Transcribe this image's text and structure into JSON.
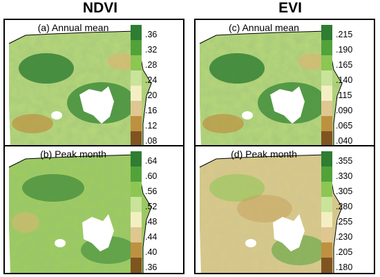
{
  "columns": [
    {
      "title": "NDVI"
    },
    {
      "title": "EVI"
    }
  ],
  "panels": [
    {
      "label": "(a) Annual mean",
      "variable": "NDVI",
      "ticks": [
        ".36",
        ".32",
        ".28",
        ".24",
        ".20",
        ".16",
        ".12",
        ".08"
      ]
    },
    {
      "label": "(b) Peak month",
      "variable": "NDVI",
      "ticks": [
        ".64",
        ".60",
        ".56",
        ".52",
        ".48",
        ".44",
        ".40",
        ".36"
      ]
    },
    {
      "label": "(c) Annual mean",
      "variable": "EVI",
      "ticks": [
        ".215",
        ".190",
        ".165",
        ".140",
        ".115",
        ".090",
        ".065",
        ".040"
      ]
    },
    {
      "label": "(d) Peak month",
      "variable": "EVI",
      "ticks": [
        ".355",
        ".330",
        ".305",
        ".280",
        ".255",
        ".230",
        ".205",
        ".180"
      ]
    }
  ],
  "legend_colors": [
    "#2e7d32",
    "#52a23a",
    "#8cc653",
    "#c8e39a",
    "#f3efc2",
    "#e0c690",
    "#be9141",
    "#7f5420"
  ],
  "mask_color": "#ffffff"
}
